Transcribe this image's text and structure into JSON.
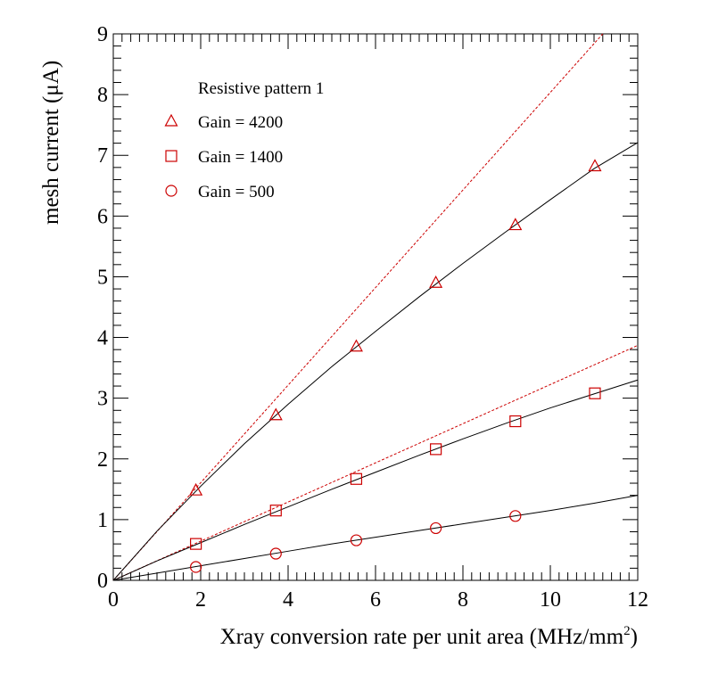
{
  "chart_data": {
    "type": "scatter",
    "xlabel": "Xray conversion rate per unit area (MHz/mm",
    "xlabel_sup": "2",
    "xlabel_close": ")",
    "ylabel": "mesh current (μA)",
    "xlim": [
      0,
      12
    ],
    "ylim": [
      0,
      9
    ],
    "x_ticks": [
      "0",
      "2",
      "4",
      "6",
      "8",
      "10",
      "12"
    ],
    "y_ticks": [
      "0",
      "1",
      "2",
      "3",
      "4",
      "5",
      "6",
      "7",
      "8",
      "9"
    ],
    "grid": false,
    "legend_title": "Resistive pattern 1",
    "legend_placement": "top-left",
    "marker_color": "#cc0000",
    "fit_color": "#000000",
    "series": [
      {
        "name": "Gain = 4200",
        "marker": "triangle",
        "x": [
          1.89,
          3.72,
          5.56,
          7.38,
          9.2,
          11.02
        ],
        "y": [
          1.48,
          2.72,
          3.85,
          4.9,
          5.85,
          6.82
        ],
        "fit": {
          "x": [
            0,
            1,
            2,
            3,
            4,
            5,
            6,
            7,
            8,
            9,
            10,
            11,
            12
          ],
          "y": [
            0,
            0.81,
            1.55,
            2.25,
            2.9,
            3.52,
            4.1,
            4.67,
            5.22,
            5.75,
            6.27,
            6.78,
            7.21
          ]
        },
        "linear": {
          "x": [
            0,
            11.2
          ],
          "y": [
            0,
            9.0
          ]
        }
      },
      {
        "name": "Gain = 1400",
        "marker": "square",
        "x": [
          1.89,
          3.72,
          5.56,
          7.38,
          9.2,
          11.02
        ],
        "y": [
          0.6,
          1.15,
          1.67,
          2.16,
          2.62,
          3.08
        ],
        "fit": {
          "x": [
            0,
            1,
            2,
            3,
            4,
            5,
            6,
            7,
            8,
            9,
            10,
            11,
            12
          ],
          "y": [
            0,
            0.32,
            0.62,
            0.92,
            1.21,
            1.5,
            1.78,
            2.06,
            2.33,
            2.59,
            2.84,
            3.07,
            3.3
          ]
        },
        "linear": {
          "x": [
            0,
            12
          ],
          "y": [
            0,
            3.87
          ]
        }
      },
      {
        "name": "Gain = 500",
        "marker": "circle",
        "x": [
          1.89,
          3.72,
          5.56,
          7.38,
          9.2
        ],
        "y": [
          0.22,
          0.44,
          0.66,
          0.86,
          1.06
        ],
        "fit": {
          "x": [
            0,
            1,
            2,
            3,
            4,
            5,
            6,
            7,
            8,
            9,
            10,
            11,
            12
          ],
          "y": [
            0,
            0.12,
            0.24,
            0.36,
            0.48,
            0.6,
            0.71,
            0.82,
            0.93,
            1.04,
            1.15,
            1.27,
            1.4
          ]
        }
      }
    ]
  }
}
